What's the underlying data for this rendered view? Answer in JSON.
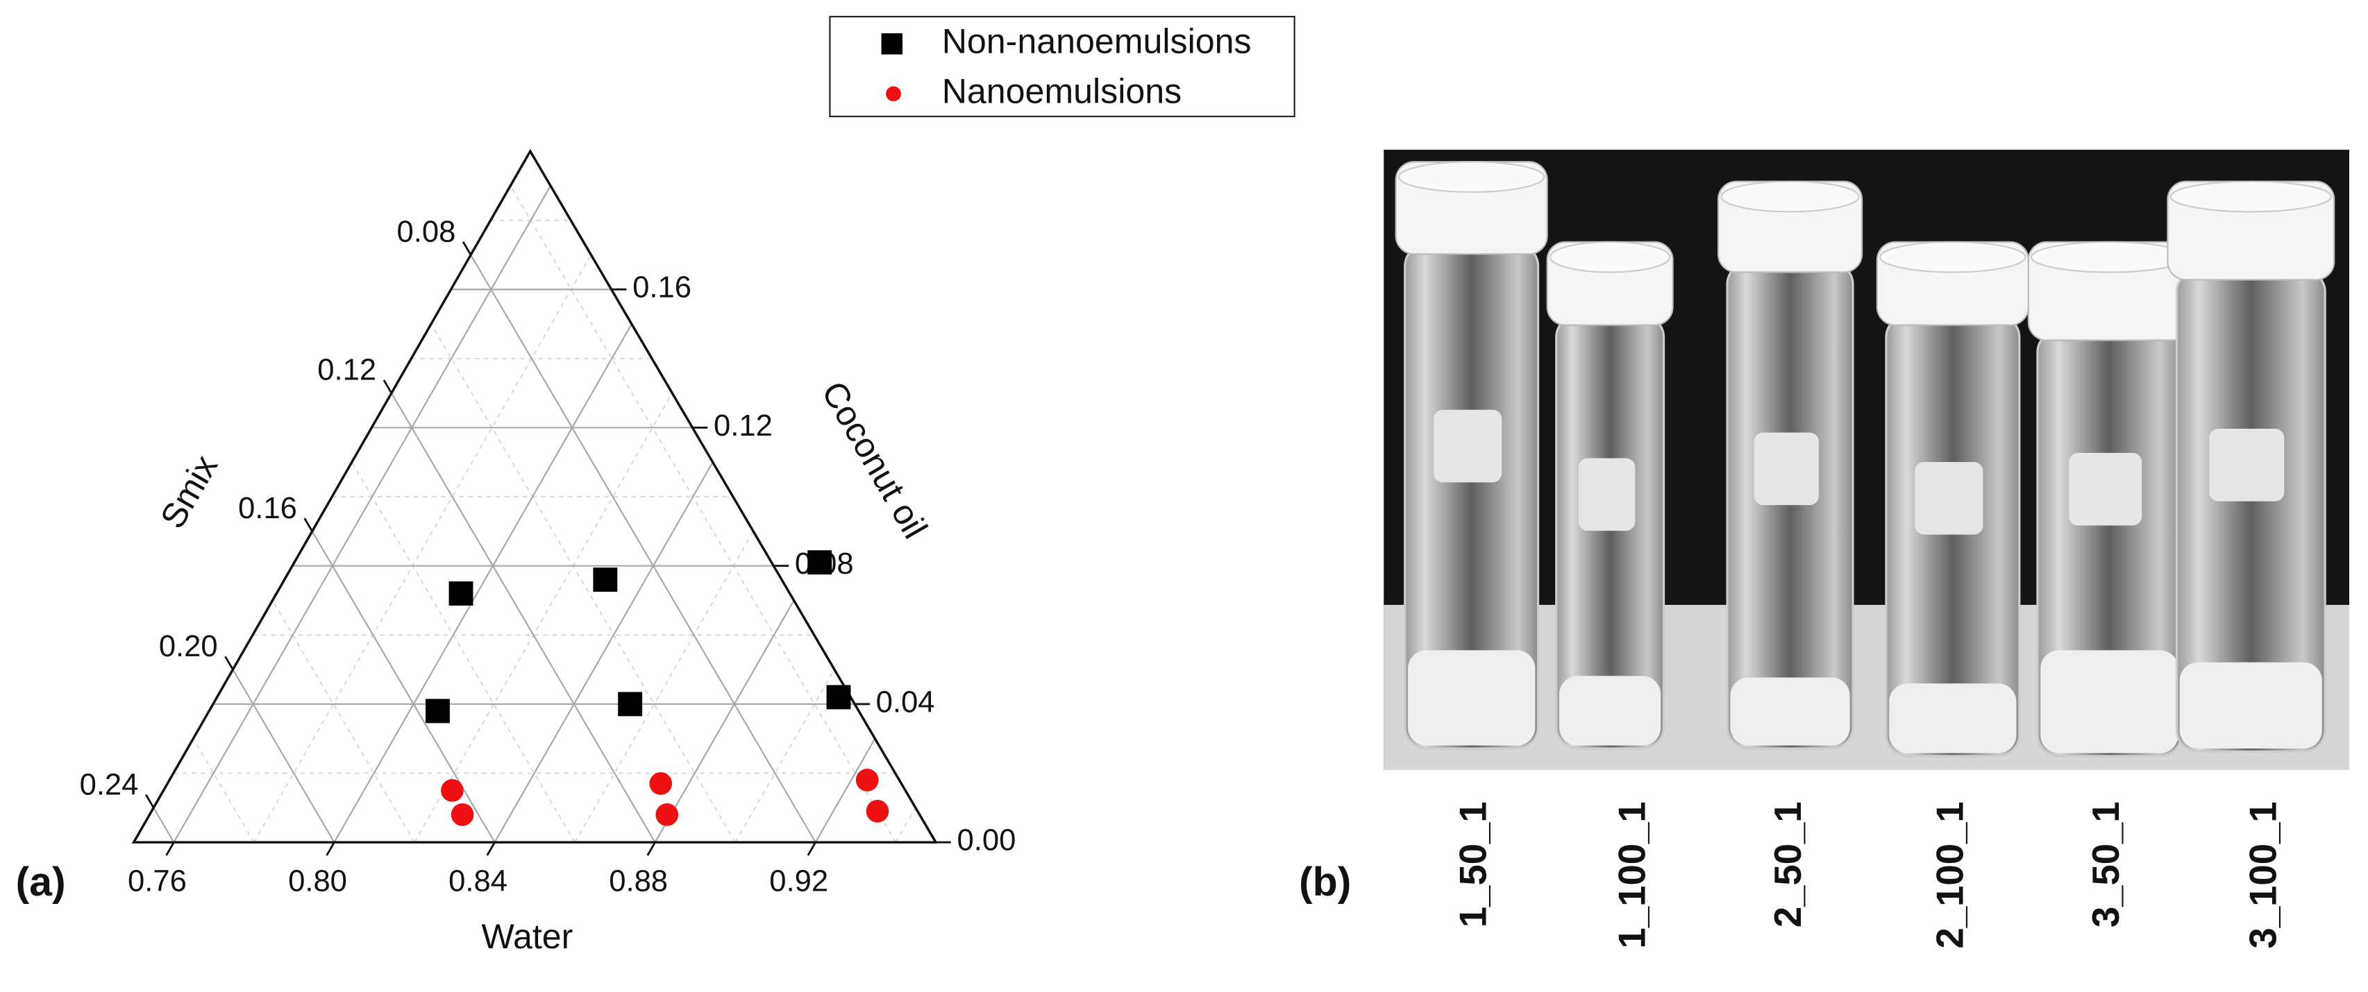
{
  "chart_data": {
    "type": "ternary",
    "panel_label": "(a)",
    "axes": {
      "water": {
        "title": "Water",
        "lim": [
          0.75,
          0.95
        ],
        "ticks": [
          {
            "value": 0.76,
            "label": "0.76"
          },
          {
            "value": 0.8,
            "label": "0.80"
          },
          {
            "value": 0.84,
            "label": "0.84"
          },
          {
            "value": 0.88,
            "label": "0.88"
          },
          {
            "value": 0.92,
            "label": "0.92"
          }
        ],
        "minor_ticks": [
          0.78,
          0.82,
          0.86,
          0.9,
          0.94
        ]
      },
      "oil": {
        "title": "Coconut oil",
        "lim": [
          0,
          0.2
        ],
        "ticks": [
          {
            "value": 0,
            "label": "0.00"
          },
          {
            "value": 0.04,
            "label": "0.04"
          },
          {
            "value": 0.08,
            "label": "0.08"
          },
          {
            "value": 0.12,
            "label": "0.12"
          },
          {
            "value": 0.16,
            "label": "0.16"
          }
        ],
        "minor_ticks": [
          0.02,
          0.06,
          0.1,
          0.14,
          0.18
        ]
      },
      "smix": {
        "title": "Smix",
        "lim": [
          0.05,
          0.25
        ],
        "ticks": [
          {
            "value": 0.08,
            "label": "0.08"
          },
          {
            "value": 0.12,
            "label": "0.12"
          },
          {
            "value": 0.16,
            "label": "0.16"
          },
          {
            "value": 0.2,
            "label": "0.20"
          },
          {
            "value": 0.24,
            "label": "0.24"
          }
        ],
        "minor_ticks": [
          0.06,
          0.1,
          0.14,
          0.18,
          0.22
        ]
      }
    },
    "series": [
      {
        "name": "Non-nanoemulsions",
        "color": "#000000",
        "marker": "square",
        "water": [
          0.796,
          0.83,
          0.881,
          0.807,
          0.854,
          0.905
        ],
        "oil": [
          0.072,
          0.076,
          0.081,
          0.038,
          0.04,
          0.042
        ],
        "smix": [
          0.132,
          0.094,
          0.038,
          0.155,
          0.106,
          0.053
        ]
      },
      {
        "name": "Nanoemulsions",
        "color": "#ee1111",
        "marker": "circle",
        "water": [
          0.822,
          0.828,
          0.873,
          0.879,
          0.924,
          0.931
        ],
        "oil": [
          0.015,
          0.008,
          0.017,
          0.008,
          0.018,
          0.009
        ],
        "smix": [
          0.163,
          0.164,
          0.11,
          0.113,
          0.058,
          0.06
        ]
      }
    ],
    "legend": "top"
  },
  "photo": {
    "panel_label": "(b)",
    "labels": [
      "1_50_1",
      "1_100_1",
      "2_50_1",
      "2_100_1",
      "3_50_1",
      "3_100_1"
    ]
  }
}
